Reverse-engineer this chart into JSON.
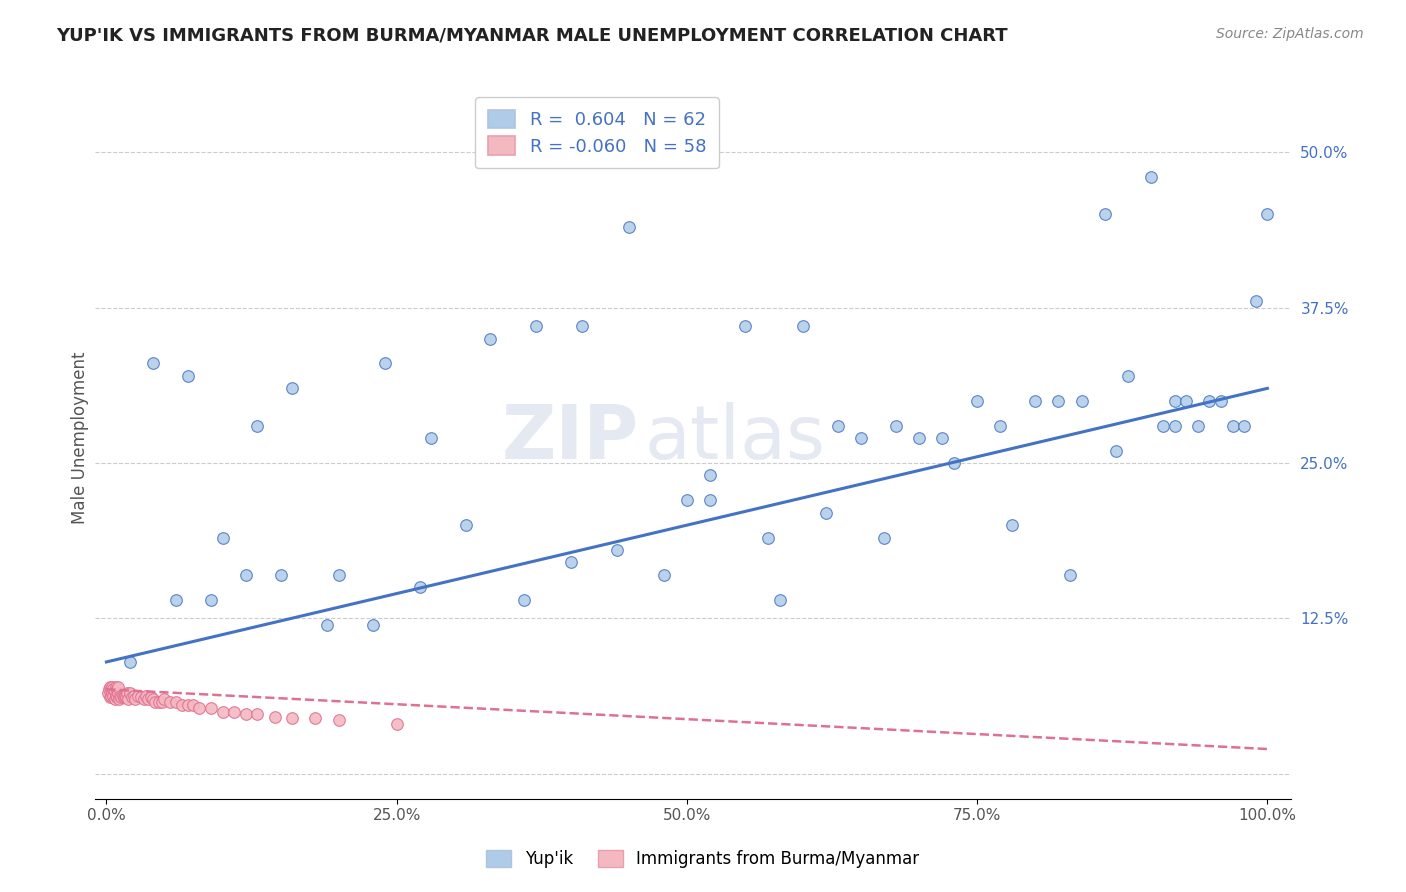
{
  "title": "YUP'IK VS IMMIGRANTS FROM BURMA/MYANMAR MALE UNEMPLOYMENT CORRELATION CHART",
  "source": "Source: ZipAtlas.com",
  "xlabel": "",
  "ylabel": "Male Unemployment",
  "r_yupik": 0.604,
  "n_yupik": 62,
  "r_burma": -0.06,
  "n_burma": 58,
  "xlim": [
    -0.01,
    1.02
  ],
  "ylim": [
    -0.02,
    0.56
  ],
  "xticks": [
    0.0,
    0.25,
    0.5,
    0.75,
    1.0
  ],
  "xticklabels": [
    "0.0%",
    "25.0%",
    "50.0%",
    "75.0%",
    "100.0%"
  ],
  "ytick_positions": [
    0.0,
    0.125,
    0.25,
    0.375,
    0.5
  ],
  "yticklabels": [
    "",
    "12.5%",
    "25.0%",
    "37.5%",
    "50.0%"
  ],
  "watermark_zip": "ZIP",
  "watermark_atlas": "atlas",
  "color_yupik": "#aecce8",
  "color_burma": "#f4b8c1",
  "line_color_yupik": "#4472c4",
  "line_color_burma": "#e07090",
  "background_color": "#ffffff",
  "legend_label_yupik": "Yup'ik",
  "legend_label_burma": "Immigrants from Burma/Myanmar",
  "yupik_line_x0": 0.0,
  "yupik_line_y0": 0.09,
  "yupik_line_x1": 1.0,
  "yupik_line_y1": 0.31,
  "burma_line_x0": 0.0,
  "burma_line_y0": 0.068,
  "burma_line_x1": 1.0,
  "burma_line_y1": 0.02,
  "yupik_x": [
    0.04,
    0.07,
    0.1,
    0.13,
    0.16,
    0.2,
    0.24,
    0.28,
    0.33,
    0.37,
    0.41,
    0.45,
    0.5,
    0.55,
    0.6,
    0.63,
    0.65,
    0.68,
    0.7,
    0.72,
    0.75,
    0.77,
    0.8,
    0.82,
    0.84,
    0.86,
    0.88,
    0.9,
    0.91,
    0.92,
    0.93,
    0.94,
    0.95,
    0.96,
    0.97,
    0.98,
    0.99,
    1.0,
    0.02,
    0.06,
    0.09,
    0.12,
    0.15,
    0.19,
    0.23,
    0.27,
    0.31,
    0.36,
    0.4,
    0.44,
    0.48,
    0.52,
    0.57,
    0.62,
    0.67,
    0.73,
    0.78,
    0.83,
    0.87,
    0.92,
    0.52,
    0.58
  ],
  "yupik_y": [
    0.33,
    0.32,
    0.19,
    0.28,
    0.31,
    0.16,
    0.33,
    0.27,
    0.35,
    0.36,
    0.36,
    0.44,
    0.22,
    0.36,
    0.36,
    0.28,
    0.27,
    0.28,
    0.27,
    0.27,
    0.3,
    0.28,
    0.3,
    0.3,
    0.3,
    0.45,
    0.32,
    0.48,
    0.28,
    0.3,
    0.3,
    0.28,
    0.3,
    0.3,
    0.28,
    0.28,
    0.38,
    0.45,
    0.09,
    0.14,
    0.14,
    0.16,
    0.16,
    0.12,
    0.12,
    0.15,
    0.2,
    0.14,
    0.17,
    0.18,
    0.16,
    0.24,
    0.19,
    0.21,
    0.19,
    0.25,
    0.2,
    0.16,
    0.26,
    0.28,
    0.22,
    0.14
  ],
  "burma_x": [
    0.001,
    0.002,
    0.003,
    0.003,
    0.004,
    0.004,
    0.005,
    0.005,
    0.006,
    0.006,
    0.007,
    0.007,
    0.008,
    0.008,
    0.009,
    0.009,
    0.01,
    0.01,
    0.011,
    0.012,
    0.013,
    0.014,
    0.015,
    0.016,
    0.017,
    0.018,
    0.019,
    0.02,
    0.022,
    0.024,
    0.025,
    0.027,
    0.03,
    0.032,
    0.034,
    0.036,
    0.038,
    0.04,
    0.042,
    0.045,
    0.048,
    0.05,
    0.055,
    0.06,
    0.065,
    0.07,
    0.075,
    0.08,
    0.09,
    0.1,
    0.11,
    0.12,
    0.13,
    0.145,
    0.16,
    0.18,
    0.2,
    0.25
  ],
  "burma_y": [
    0.065,
    0.068,
    0.062,
    0.07,
    0.063,
    0.068,
    0.065,
    0.07,
    0.063,
    0.068,
    0.06,
    0.067,
    0.063,
    0.07,
    0.062,
    0.068,
    0.065,
    0.07,
    0.06,
    0.063,
    0.062,
    0.063,
    0.062,
    0.063,
    0.062,
    0.065,
    0.06,
    0.065,
    0.062,
    0.063,
    0.06,
    0.063,
    0.062,
    0.06,
    0.063,
    0.06,
    0.062,
    0.06,
    0.058,
    0.058,
    0.058,
    0.06,
    0.058,
    0.058,
    0.055,
    0.055,
    0.055,
    0.053,
    0.053,
    0.05,
    0.05,
    0.048,
    0.048,
    0.046,
    0.045,
    0.045,
    0.043,
    0.04
  ]
}
